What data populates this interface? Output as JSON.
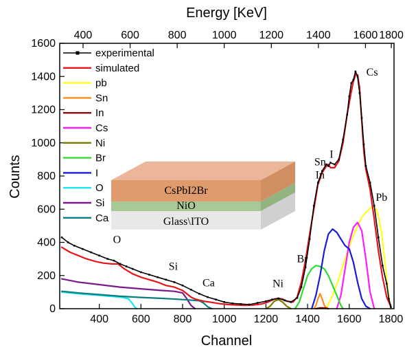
{
  "chart_data": {
    "type": "line",
    "xlabel": "Channel",
    "ylabel": "Counts",
    "top_xlabel": "Energy [KeV]",
    "xlim": [
      210,
      1815
    ],
    "ylim": [
      0,
      1600
    ],
    "x_ticks": [
      400,
      600,
      800,
      1000,
      1200,
      1400,
      1600,
      1800
    ],
    "y_ticks": [
      0,
      200,
      400,
      600,
      800,
      1000,
      1200,
      1400,
      1600
    ],
    "top_ticks": [
      {
        "label": "400",
        "channel": 322
      },
      {
        "label": "600",
        "channel": 548
      },
      {
        "label": "800",
        "channel": 774
      },
      {
        "label": "1000",
        "channel": 1000
      },
      {
        "label": "1200",
        "channel": 1226
      },
      {
        "label": "1400",
        "channel": 1452
      },
      {
        "label": "1600",
        "channel": 1678
      },
      {
        "label": "1800",
        "channel": 1802
      }
    ],
    "legend": [
      {
        "name": "experimental",
        "color": "#000000",
        "marker": true
      },
      {
        "name": "simulated",
        "color": "#e8141c"
      },
      {
        "name": "pb",
        "color": "#ffff1e"
      },
      {
        "name": "Sn",
        "color": "#ff8c1a"
      },
      {
        "name": "In",
        "color": "#8b0a0a"
      },
      {
        "name": "Cs",
        "color": "#ff1aff"
      },
      {
        "name": "Ni",
        "color": "#7c7c00"
      },
      {
        "name": "Br",
        "color": "#2edc2e"
      },
      {
        "name": "I",
        "color": "#1a1adc"
      },
      {
        "name": "O",
        "color": "#1ae6ee"
      },
      {
        "name": "Si",
        "color": "#7a1a8a"
      },
      {
        "name": "Ca",
        "color": "#0c7d7d"
      }
    ],
    "series": [
      {
        "name": "experimental",
        "color": "#000000",
        "width": 1.6,
        "x": [
          220,
          250,
          280,
          320,
          360,
          400,
          440,
          470,
          500,
          530,
          560,
          600,
          640,
          680,
          720,
          760,
          800,
          840,
          880,
          920,
          960,
          1000,
          1040,
          1080,
          1120,
          1160,
          1200,
          1230,
          1260,
          1290,
          1320,
          1350,
          1370,
          1390,
          1410,
          1430,
          1450,
          1470,
          1490,
          1500,
          1510,
          1530,
          1550,
          1570,
          1590,
          1600,
          1610,
          1620,
          1630,
          1640,
          1650,
          1660,
          1670,
          1680,
          1700,
          1720,
          1740,
          1760,
          1780,
          1790,
          1800
        ],
        "y": [
          430,
          400,
          380,
          360,
          340,
          320,
          300,
          290,
          270,
          255,
          240,
          220,
          205,
          190,
          175,
          160,
          140,
          115,
          90,
          70,
          55,
          40,
          32,
          28,
          25,
          35,
          45,
          55,
          62,
          50,
          40,
          65,
          130,
          250,
          420,
          620,
          760,
          830,
          870,
          860,
          880,
          870,
          900,
          1020,
          1170,
          1280,
          1360,
          1380,
          1430,
          1400,
          1300,
          1150,
          990,
          860,
          760,
          620,
          430,
          260,
          150,
          60,
          10
        ]
      },
      {
        "name": "simulated",
        "color": "#e8141c",
        "width": 2.2,
        "x": [
          220,
          260,
          300,
          340,
          380,
          420,
          460,
          490,
          520,
          560,
          600,
          640,
          680,
          720,
          760,
          800,
          820,
          840,
          860,
          900,
          940,
          980,
          1020,
          1060,
          1100,
          1140,
          1180,
          1210,
          1240,
          1260,
          1280,
          1300,
          1330,
          1350,
          1370,
          1390,
          1410,
          1430,
          1450,
          1470,
          1490,
          1500,
          1510,
          1530,
          1550,
          1570,
          1590,
          1610,
          1620,
          1630,
          1640,
          1650,
          1660,
          1670,
          1680,
          1700,
          1720,
          1740,
          1760,
          1780,
          1800
        ],
        "y": [
          370,
          340,
          320,
          300,
          285,
          275,
          270,
          270,
          240,
          210,
          190,
          175,
          160,
          140,
          130,
          110,
          90,
          70,
          58,
          45,
          38,
          30,
          25,
          22,
          20,
          22,
          28,
          40,
          58,
          62,
          58,
          45,
          40,
          70,
          160,
          290,
          450,
          600,
          750,
          820,
          860,
          870,
          850,
          850,
          890,
          1000,
          1170,
          1310,
          1370,
          1410,
          1410,
          1330,
          1130,
          950,
          840,
          720,
          540,
          350,
          190,
          70,
          10
        ]
      },
      {
        "name": "pb",
        "color": "#ffff1e",
        "width": 2.2,
        "x": [
          1490,
          1520,
          1550,
          1580,
          1610,
          1640,
          1660,
          1680,
          1700,
          1715,
          1730,
          1740,
          1755,
          1770,
          1780,
          1790,
          1800
        ],
        "y": [
          0,
          80,
          180,
          300,
          410,
          500,
          550,
          580,
          605,
          615,
          600,
          560,
          460,
          300,
          180,
          70,
          0
        ]
      },
      {
        "name": "Sn",
        "color": "#ff8c1a",
        "width": 2.2,
        "x": [
          1430,
          1440,
          1450,
          1460,
          1470,
          1480,
          1490,
          1500
        ],
        "y": [
          0,
          20,
          60,
          90,
          60,
          20,
          5,
          0
        ]
      },
      {
        "name": "In",
        "color": "#8b0a0a",
        "width": 2.2,
        "x": [
          1440,
          1460,
          1480,
          1500
        ],
        "y": [
          0,
          5,
          5,
          0
        ]
      },
      {
        "name": "Cs",
        "color": "#ff1aff",
        "width": 2.2,
        "x": [
          1540,
          1560,
          1580,
          1600,
          1620,
          1640,
          1660,
          1680,
          1700,
          1720
        ],
        "y": [
          0,
          80,
          240,
          400,
          490,
          520,
          470,
          300,
          100,
          0
        ]
      },
      {
        "name": "Ni",
        "color": "#7c7c00",
        "width": 2.2,
        "x": [
          1200,
          1220,
          1240,
          1260,
          1280,
          1300,
          1320
        ],
        "y": [
          0,
          15,
          45,
          55,
          40,
          15,
          0
        ]
      },
      {
        "name": "Br",
        "color": "#2edc2e",
        "width": 2.2,
        "x": [
          1340,
          1360,
          1380,
          1400,
          1420,
          1440,
          1460,
          1480,
          1500,
          1520,
          1540,
          1560,
          1570
        ],
        "y": [
          0,
          40,
          120,
          200,
          240,
          260,
          255,
          240,
          200,
          140,
          80,
          20,
          0
        ]
      },
      {
        "name": "I",
        "color": "#1a1adc",
        "width": 2.2,
        "x": [
          1420,
          1440,
          1460,
          1480,
          1500,
          1520,
          1540,
          1560,
          1580,
          1600,
          1620,
          1640,
          1660,
          1680,
          1700
        ],
        "y": [
          0,
          80,
          200,
          350,
          450,
          480,
          460,
          420,
          380,
          360,
          280,
          160,
          60,
          15,
          0
        ]
      },
      {
        "name": "O",
        "color": "#1ae6ee",
        "width": 2.2,
        "x": [
          220,
          300,
          400,
          500,
          540,
          560,
          570,
          580
        ],
        "y": [
          100,
          90,
          80,
          70,
          60,
          30,
          10,
          0
        ]
      },
      {
        "name": "Si",
        "color": "#7a1a8a",
        "width": 2.2,
        "x": [
          220,
          300,
          400,
          500,
          600,
          700,
          760,
          800,
          820,
          840,
          860
        ],
        "y": [
          180,
          160,
          145,
          130,
          120,
          110,
          105,
          95,
          60,
          20,
          0
        ]
      },
      {
        "name": "Ca",
        "color": "#0c7d7d",
        "width": 2.2,
        "x": [
          220,
          300,
          400,
          500,
          600,
          700,
          800,
          880,
          900,
          920,
          940
        ],
        "y": [
          105,
          95,
          85,
          75,
          68,
          62,
          55,
          48,
          35,
          12,
          0
        ]
      }
    ],
    "annotations": [
      {
        "text": "O",
        "x": 485,
        "y": 395
      },
      {
        "text": "Si",
        "x": 755,
        "y": 235
      },
      {
        "text": "Ca",
        "x": 925,
        "y": 135
      },
      {
        "text": "Ni",
        "x": 1258,
        "y": 130
      },
      {
        "text": "Br",
        "x": 1375,
        "y": 280
      },
      {
        "text": "Sn",
        "x": 1460,
        "y": 865
      },
      {
        "text": "In",
        "x": 1460,
        "y": 785
      },
      {
        "text": "I",
        "x": 1515,
        "y": 910
      },
      {
        "text": "Cs",
        "x": 1710,
        "y": 1405
      },
      {
        "text": "Pb",
        "x": 1755,
        "y": 650
      }
    ]
  },
  "inset": {
    "layers": [
      "CsPbI2Br",
      "NiO",
      "Glass\\ITO"
    ],
    "colors": {
      "top": "#e9a98a",
      "front": "#d98a55",
      "side": "#c97a48",
      "nio_front": "#a8c895",
      "nio_side": "#93b481",
      "glass_front": "#e8e8e8",
      "glass_side": "#d0d0d0"
    }
  }
}
